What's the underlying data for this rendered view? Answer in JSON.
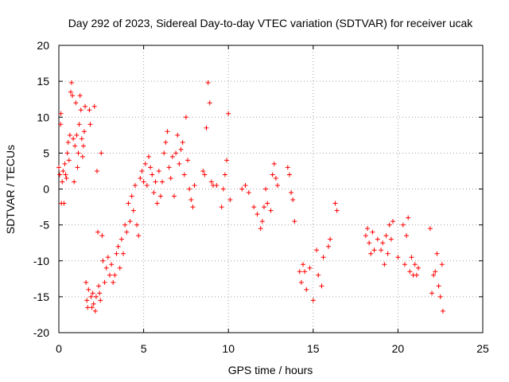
{
  "chart_data": {
    "type": "scatter",
    "title": "Day 292 of 2023, Sidereal Day-to-day VTEC variation (SDTVAR) for receiver ucak",
    "xlabel": "GPS time / hours",
    "ylabel": "SDTVAR / TECUs",
    "xlim": [
      0,
      25
    ],
    "ylim": [
      -20,
      20
    ],
    "xticks": [
      0,
      5,
      10,
      15,
      20,
      25
    ],
    "yticks": [
      -20,
      -15,
      -10,
      -5,
      0,
      5,
      10,
      15,
      20
    ],
    "grid": true,
    "marker": "plus",
    "color": "#ff0000",
    "series": [
      {
        "name": "SDTVAR",
        "points": [
          [
            0.0,
            3.0
          ],
          [
            0.05,
            2.0
          ],
          [
            0.1,
            9.0
          ],
          [
            0.12,
            10.5
          ],
          [
            0.15,
            -2.0
          ],
          [
            0.2,
            1.0
          ],
          [
            0.25,
            2.5
          ],
          [
            0.3,
            -2.0
          ],
          [
            0.35,
            3.5
          ],
          [
            0.4,
            2.0
          ],
          [
            0.45,
            1.5
          ],
          [
            0.5,
            5.0
          ],
          [
            0.55,
            6.5
          ],
          [
            0.6,
            4.0
          ],
          [
            0.65,
            7.5
          ],
          [
            0.7,
            13.5
          ],
          [
            0.75,
            14.8
          ],
          [
            0.8,
            13.0
          ],
          [
            0.85,
            7.0
          ],
          [
            0.9,
            1.0
          ],
          [
            0.95,
            6.0
          ],
          [
            1.0,
            12.0
          ],
          [
            1.05,
            7.5
          ],
          [
            1.1,
            3.0
          ],
          [
            1.15,
            5.0
          ],
          [
            1.2,
            9.0
          ],
          [
            1.25,
            13.0
          ],
          [
            1.3,
            11.0
          ],
          [
            1.35,
            7.0
          ],
          [
            1.4,
            4.5
          ],
          [
            1.45,
            6.0
          ],
          [
            1.5,
            8.0
          ],
          [
            1.55,
            11.5
          ],
          [
            1.6,
            -13.0
          ],
          [
            1.65,
            -15.5
          ],
          [
            1.7,
            -16.5
          ],
          [
            1.75,
            -14.0
          ],
          [
            1.8,
            11.0
          ],
          [
            1.85,
            9.0
          ],
          [
            1.9,
            -15.0
          ],
          [
            1.95,
            -16.5
          ],
          [
            2.0,
            -14.5
          ],
          [
            2.05,
            -16.0
          ],
          [
            2.1,
            11.5
          ],
          [
            2.15,
            -17.0
          ],
          [
            2.2,
            -15.0
          ],
          [
            2.25,
            2.5
          ],
          [
            2.3,
            -6.0
          ],
          [
            2.35,
            -13.5
          ],
          [
            2.4,
            -14.5
          ],
          [
            2.45,
            -15.5
          ],
          [
            2.5,
            5.0
          ],
          [
            2.55,
            -6.5
          ],
          [
            2.6,
            -10.0
          ],
          [
            2.7,
            -13.0
          ],
          [
            2.8,
            -11.0
          ],
          [
            2.9,
            -9.5
          ],
          [
            3.0,
            -12.0
          ],
          [
            3.1,
            -10.5
          ],
          [
            3.2,
            -13.0
          ],
          [
            3.3,
            -12.0
          ],
          [
            3.4,
            -9.0
          ],
          [
            3.5,
            -8.0
          ],
          [
            3.6,
            -11.0
          ],
          [
            3.7,
            -7.0
          ],
          [
            3.8,
            -9.0
          ],
          [
            3.9,
            -5.0
          ],
          [
            4.0,
            -6.0
          ],
          [
            4.1,
            -2.0
          ],
          [
            4.2,
            -4.5
          ],
          [
            4.3,
            -1.0
          ],
          [
            4.4,
            -3.0
          ],
          [
            4.5,
            0.5
          ],
          [
            4.6,
            -5.0
          ],
          [
            4.7,
            -6.5
          ],
          [
            4.8,
            1.5
          ],
          [
            4.9,
            2.5
          ],
          [
            5.0,
            1.0
          ],
          [
            5.1,
            3.5
          ],
          [
            5.2,
            0.5
          ],
          [
            5.3,
            4.5
          ],
          [
            5.4,
            3.0
          ],
          [
            5.5,
            2.0
          ],
          [
            5.6,
            -0.5
          ],
          [
            5.7,
            1.0
          ],
          [
            5.8,
            -2.0
          ],
          [
            5.9,
            2.5
          ],
          [
            6.0,
            -1.0
          ],
          [
            6.1,
            1.0
          ],
          [
            6.2,
            5.0
          ],
          [
            6.3,
            6.5
          ],
          [
            6.4,
            8.0
          ],
          [
            6.5,
            3.0
          ],
          [
            6.6,
            1.5
          ],
          [
            6.7,
            4.5
          ],
          [
            6.8,
            -1.0
          ],
          [
            6.9,
            5.0
          ],
          [
            7.0,
            7.5
          ],
          [
            7.1,
            3.5
          ],
          [
            7.2,
            5.5
          ],
          [
            7.3,
            6.5
          ],
          [
            7.4,
            2.0
          ],
          [
            7.5,
            10.0
          ],
          [
            7.6,
            4.0
          ],
          [
            7.7,
            0.0
          ],
          [
            7.8,
            -1.5
          ],
          [
            7.9,
            -2.5
          ],
          [
            8.0,
            0.5
          ],
          [
            8.5,
            2.5
          ],
          [
            8.6,
            2.0
          ],
          [
            8.7,
            8.5
          ],
          [
            8.8,
            14.8
          ],
          [
            8.9,
            12.0
          ],
          [
            9.0,
            1.0
          ],
          [
            9.1,
            0.5
          ],
          [
            9.3,
            0.5
          ],
          [
            9.6,
            -2.5
          ],
          [
            9.7,
            0.0
          ],
          [
            9.8,
            2.0
          ],
          [
            9.9,
            4.0
          ],
          [
            10.0,
            10.5
          ],
          [
            10.1,
            -1.5
          ],
          [
            10.8,
            0.0
          ],
          [
            11.0,
            0.5
          ],
          [
            11.2,
            -0.5
          ],
          [
            11.5,
            -2.5
          ],
          [
            11.7,
            -3.5
          ],
          [
            11.9,
            -5.5
          ],
          [
            12.0,
            -4.5
          ],
          [
            12.1,
            -2.5
          ],
          [
            12.2,
            0.0
          ],
          [
            12.3,
            -2.0
          ],
          [
            12.5,
            -3.0
          ],
          [
            12.6,
            2.0
          ],
          [
            12.7,
            3.5
          ],
          [
            12.8,
            1.5
          ],
          [
            12.9,
            0.5
          ],
          [
            13.5,
            3.0
          ],
          [
            13.6,
            2.0
          ],
          [
            13.7,
            -0.5
          ],
          [
            13.8,
            -1.5
          ],
          [
            13.9,
            -4.5
          ],
          [
            14.2,
            -11.5
          ],
          [
            14.3,
            -13.0
          ],
          [
            14.4,
            -10.5
          ],
          [
            14.5,
            -11.5
          ],
          [
            14.6,
            -14.0
          ],
          [
            14.8,
            -11.0
          ],
          [
            15.0,
            -15.5
          ],
          [
            15.2,
            -8.5
          ],
          [
            15.3,
            -12.0
          ],
          [
            15.5,
            -13.5
          ],
          [
            15.6,
            -9.5
          ],
          [
            15.9,
            -8.0
          ],
          [
            16.0,
            -7.0
          ],
          [
            16.3,
            -2.0
          ],
          [
            16.4,
            -3.0
          ],
          [
            18.1,
            -6.5
          ],
          [
            18.2,
            -5.5
          ],
          [
            18.3,
            -7.5
          ],
          [
            18.4,
            -9.0
          ],
          [
            18.5,
            -6.0
          ],
          [
            18.6,
            -8.5
          ],
          [
            18.8,
            -7.0
          ],
          [
            19.0,
            -8.5
          ],
          [
            19.1,
            -7.5
          ],
          [
            19.2,
            -10.5
          ],
          [
            19.3,
            -6.5
          ],
          [
            19.4,
            -9.0
          ],
          [
            19.5,
            -5.0
          ],
          [
            19.6,
            -7.0
          ],
          [
            19.7,
            -4.5
          ],
          [
            20.0,
            -9.5
          ],
          [
            20.3,
            -5.0
          ],
          [
            20.4,
            -10.5
          ],
          [
            20.5,
            -6.5
          ],
          [
            20.6,
            -4.0
          ],
          [
            20.7,
            -11.5
          ],
          [
            20.8,
            -9.5
          ],
          [
            20.9,
            -12.0
          ],
          [
            21.0,
            -10.5
          ],
          [
            21.1,
            -12.0
          ],
          [
            21.2,
            -11.0
          ],
          [
            21.9,
            -5.5
          ],
          [
            22.0,
            -14.5
          ],
          [
            22.1,
            -12.0
          ],
          [
            22.2,
            -11.5
          ],
          [
            22.3,
            -9.0
          ],
          [
            22.4,
            -13.5
          ],
          [
            22.5,
            -15.0
          ],
          [
            22.6,
            -10.5
          ],
          [
            22.65,
            -17.0
          ]
        ]
      }
    ]
  }
}
